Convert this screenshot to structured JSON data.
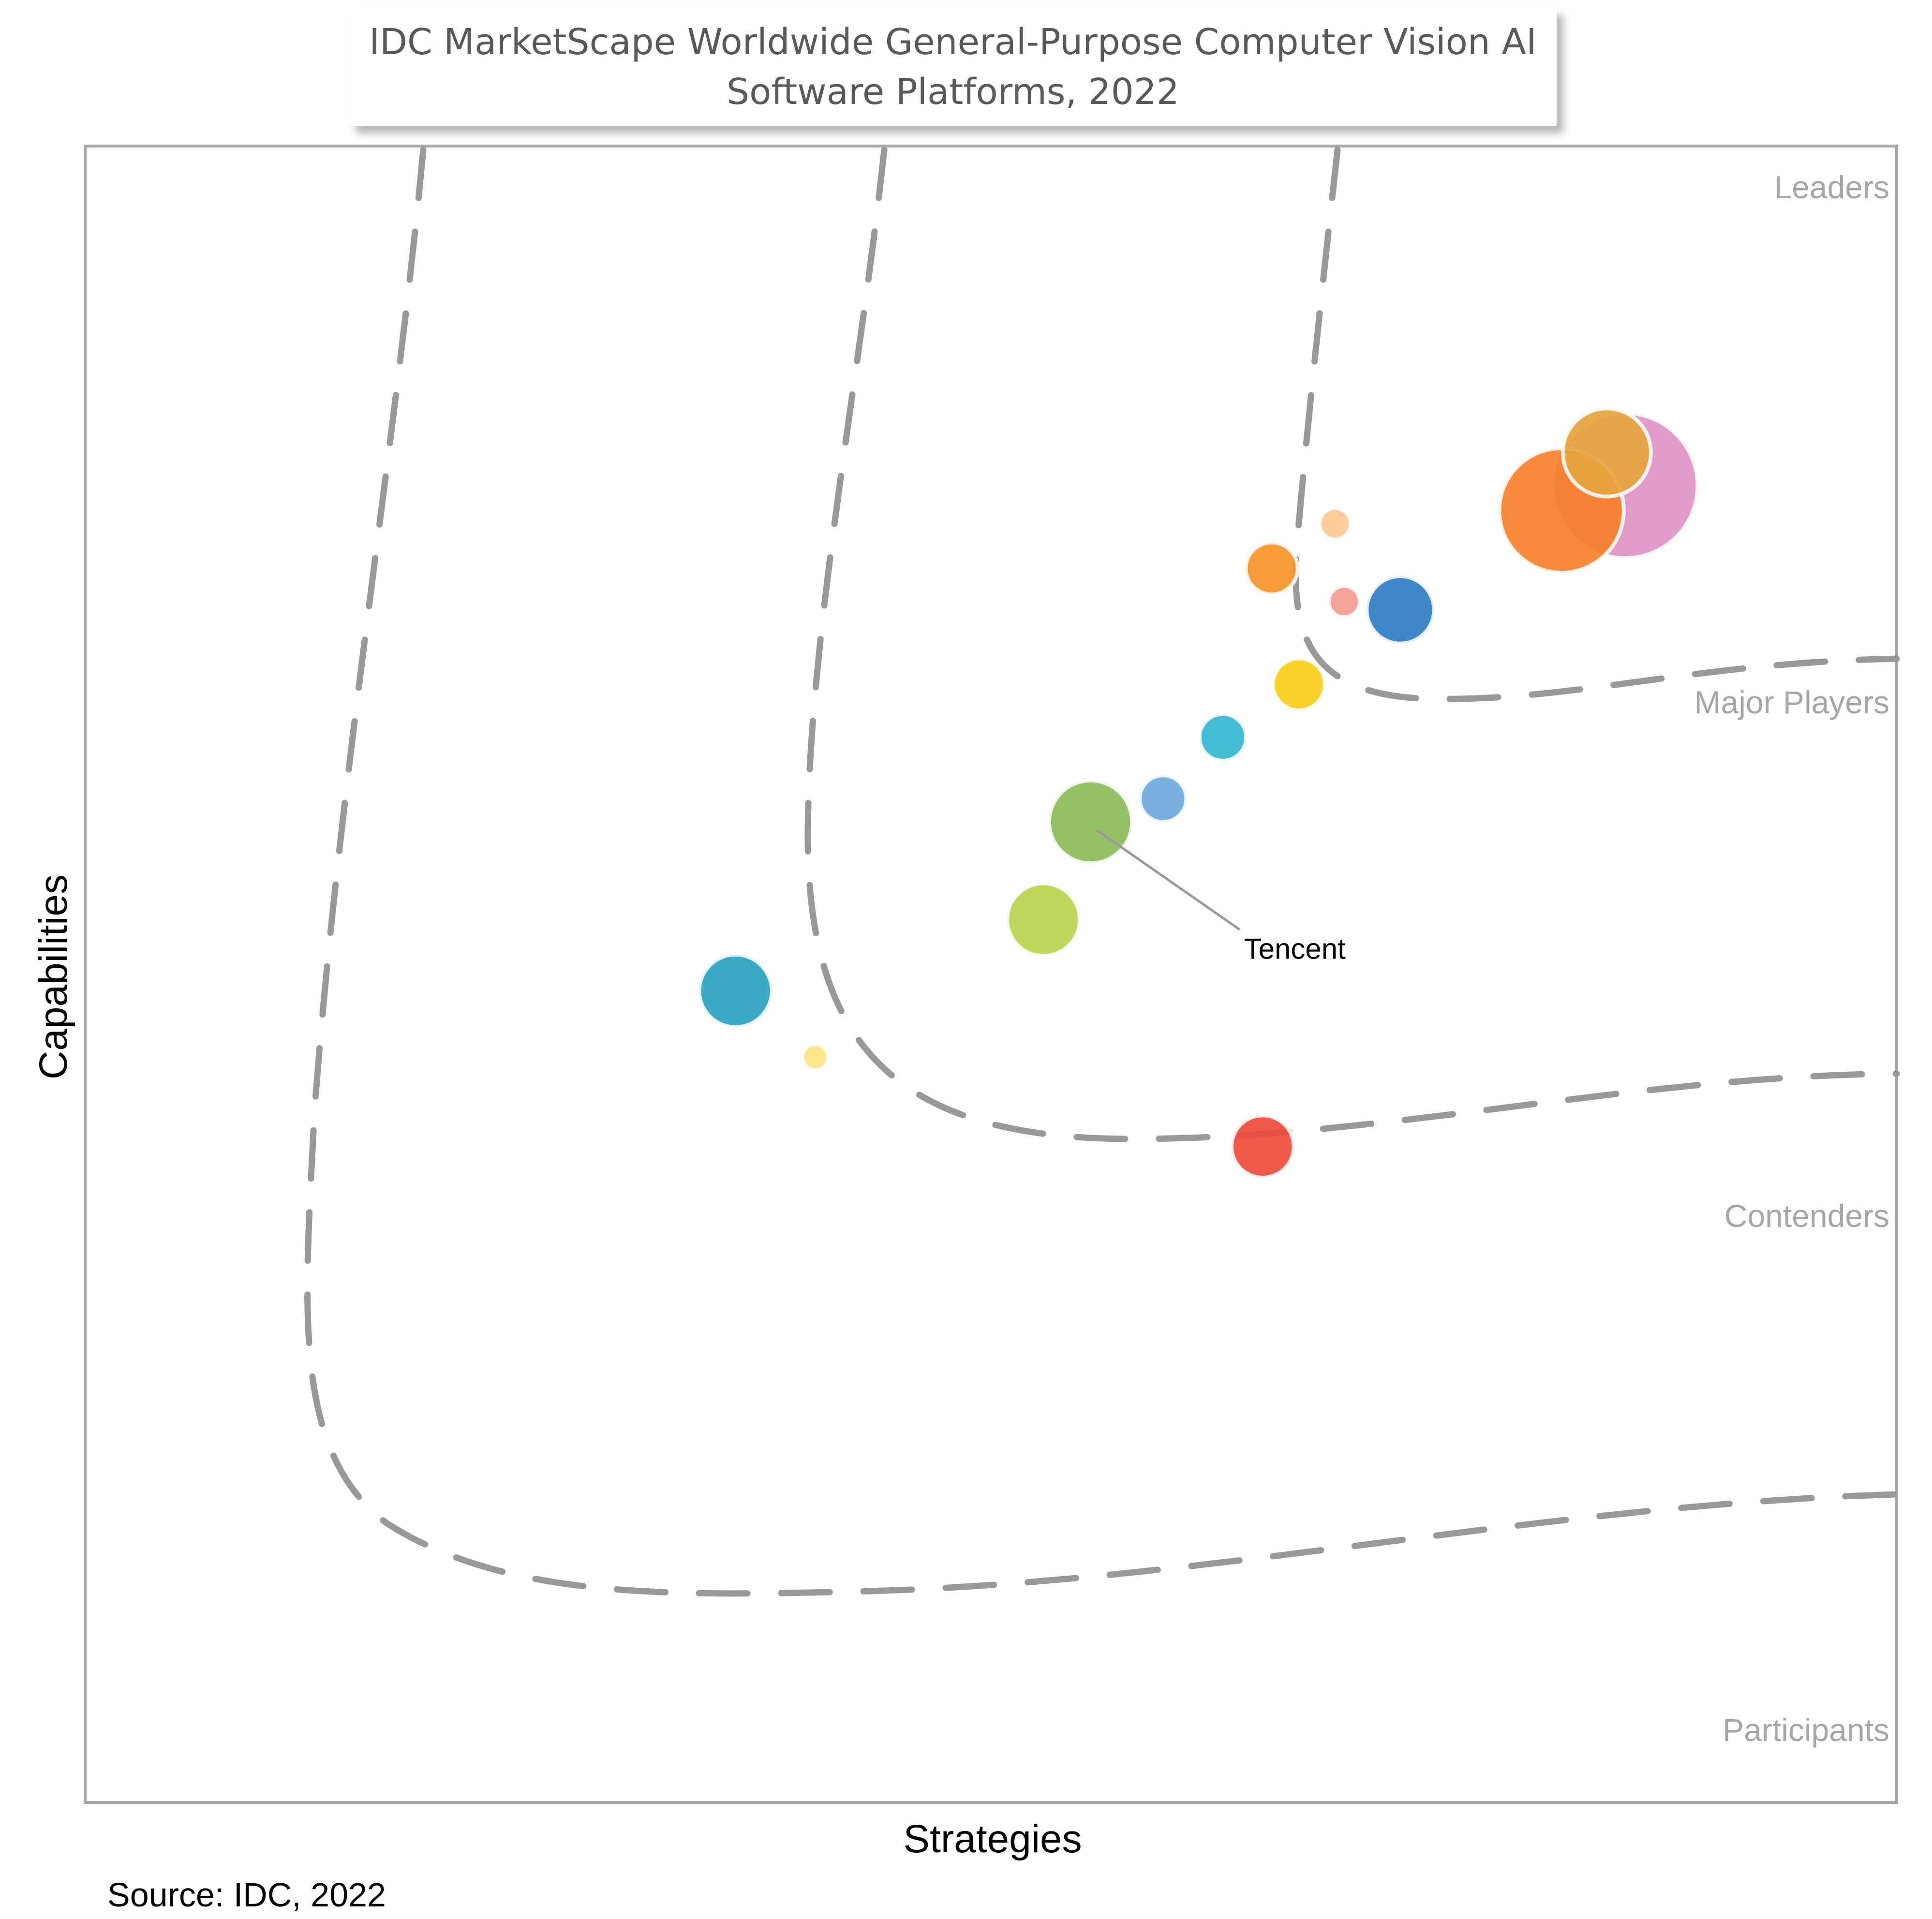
{
  "chart_data": {
    "type": "scatter",
    "title_lines": [
      "IDC MarketScape Worldwide General-Purpose Computer Vision AI",
      "Software Platforms, 2022"
    ],
    "xlabel": "Strategies",
    "ylabel": "Capabilities",
    "xlim": [
      0,
      100
    ],
    "ylim": [
      0,
      100
    ],
    "regions": [
      "Leaders",
      "Major Players",
      "Contenders",
      "Participants"
    ],
    "source": "Source: IDC, 2022",
    "highlighted_label": "Tencent",
    "points": [
      {
        "x": 85.0,
        "y": 79.5,
        "size": 14,
        "color": "#DE93C4",
        "label": ""
      },
      {
        "x": 81.5,
        "y": 78.0,
        "size": 12,
        "color": "#F7802A",
        "label": ""
      },
      {
        "x": 84.0,
        "y": 81.5,
        "size": 8.5,
        "color": "#E5A43F",
        "label": ""
      },
      {
        "x": 69.0,
        "y": 77.2,
        "size": 3,
        "color": "#FDC893",
        "label": ""
      },
      {
        "x": 65.5,
        "y": 74.5,
        "size": 5,
        "color": "#F7922A",
        "label": ""
      },
      {
        "x": 69.5,
        "y": 72.5,
        "size": 3,
        "color": "#F39B93",
        "label": ""
      },
      {
        "x": 72.6,
        "y": 72.0,
        "size": 6.5,
        "color": "#2F7DC1",
        "label": ""
      },
      {
        "x": 67.0,
        "y": 67.5,
        "size": 5,
        "color": "#FBCD1A",
        "label": ""
      },
      {
        "x": 62.8,
        "y": 64.3,
        "size": 4.5,
        "color": "#33B5CF",
        "label": ""
      },
      {
        "x": 59.5,
        "y": 60.6,
        "size": 4.5,
        "color": "#6FA8DC",
        "label": ""
      },
      {
        "x": 55.5,
        "y": 59.2,
        "size": 8,
        "color": "#8DBB5A",
        "label": "Tencent"
      },
      {
        "x": 52.9,
        "y": 53.3,
        "size": 7,
        "color": "#B8D44F",
        "label": ""
      },
      {
        "x": 35.9,
        "y": 49.0,
        "size": 7,
        "color": "#2AA1BF",
        "label": ""
      },
      {
        "x": 40.3,
        "y": 45.0,
        "size": 2.5,
        "color": "#FBE583",
        "label": ""
      },
      {
        "x": 65.0,
        "y": 39.6,
        "size": 6,
        "color": "#EE4B3D",
        "label": ""
      }
    ]
  }
}
